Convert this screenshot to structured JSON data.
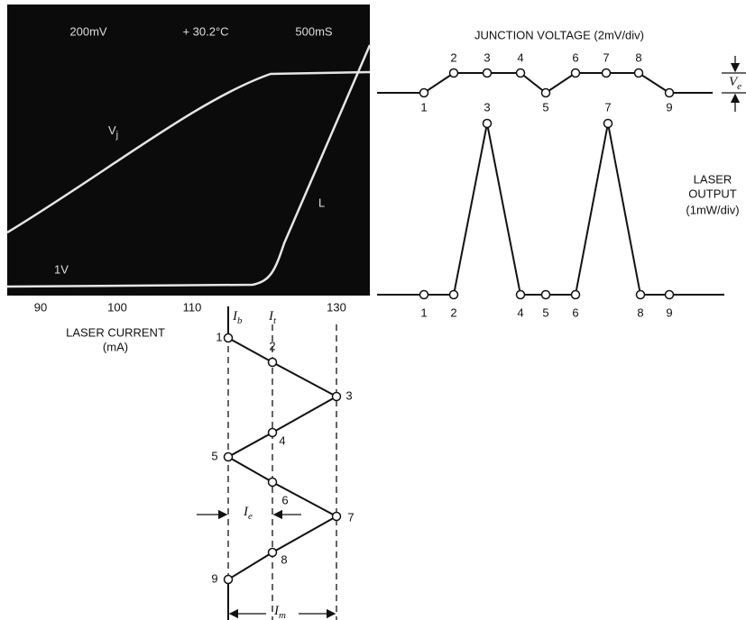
{
  "scope": {
    "labels": {
      "volts": "200mV",
      "temperature": "+ 30.2°C",
      "time": "500mS",
      "curve_v": {
        "symbol": "V",
        "subscript": "j"
      },
      "curve_l": "L",
      "scale": "1V"
    },
    "x_ticks": [
      "90",
      "100",
      "110",
      "130"
    ],
    "x_label": [
      "LASER CURRENT",
      "(mA)"
    ]
  },
  "junction": {
    "title": "JUNCTION VOLTAGE (2mV/div)",
    "points": [
      "1",
      "2",
      "3",
      "4",
      "5",
      "6",
      "7",
      "8",
      "9"
    ],
    "bracket": {
      "symbol": "V",
      "subscript": "e"
    }
  },
  "laser_output": {
    "title": [
      "LASER",
      "OUTPUT",
      "(1mW/div)"
    ],
    "points": [
      "1",
      "2",
      "3",
      "4",
      "5",
      "6",
      "7",
      "8",
      "9"
    ]
  },
  "current": {
    "bias": {
      "symbol": "I",
      "subscript": "b"
    },
    "threshold": {
      "symbol": "I",
      "subscript": "t"
    },
    "points": [
      "1",
      "2",
      "3",
      "4",
      "5",
      "6",
      "7",
      "8",
      "9"
    ],
    "error": {
      "symbol": "I",
      "subscript": "e"
    },
    "modulation": {
      "symbol": "I",
      "subscript": "m"
    }
  }
}
